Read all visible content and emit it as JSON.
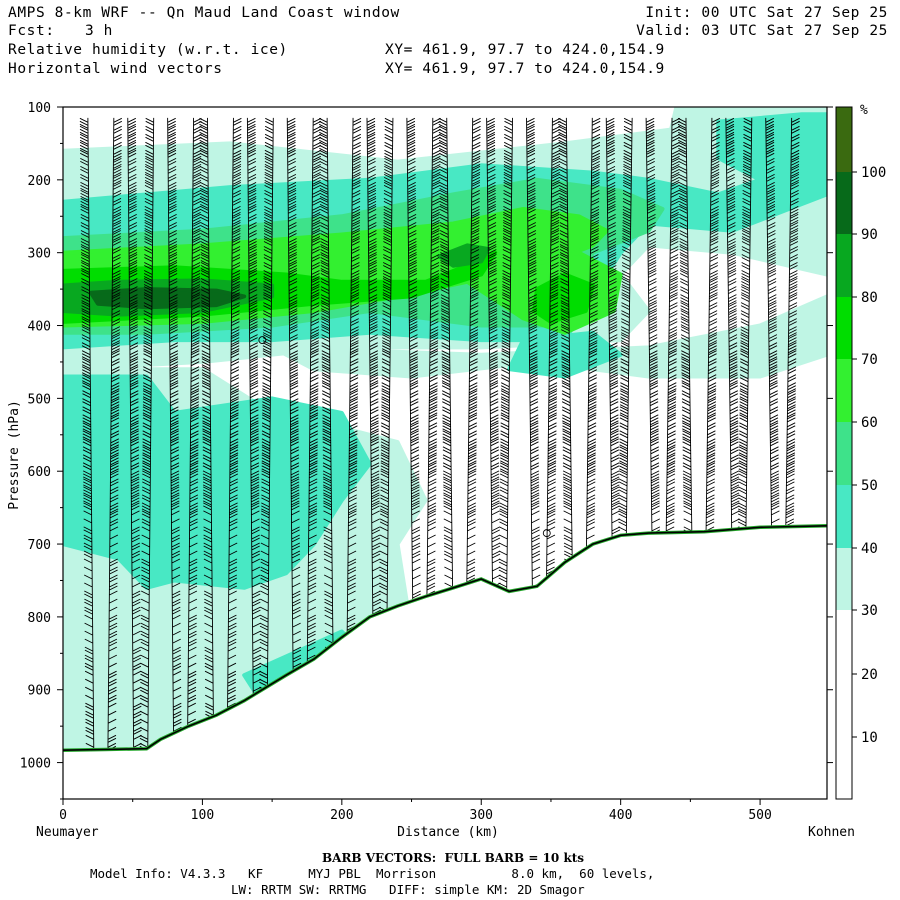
{
  "header": {
    "title": "AMPS 8-km WRF -- Qn Maud Land Coast window",
    "forecast_label": "Fcst:",
    "forecast_value": "3 h",
    "init": "Init: 00 UTC Sat 27 Sep 25",
    "valid": "Valid: 03 UTC Sat 27 Sep 25",
    "field1": "Relative humidity (w.r.t. ice)",
    "field2": "Horizontal wind vectors",
    "xy1": "XY= 461.9, 97.7 to 424.0,154.9",
    "xy2": "XY= 461.9, 97.7 to 424.0,154.9"
  },
  "footer": {
    "barb_note": "BARB VECTORS:  FULL BARB = 10 kts",
    "model_line1": "Model Info: V4.3.3   KF      MYJ PBL  Morrison          8.0 km,  60 levels,",
    "model_line2": "LW: RRTM SW: RRTMG   DIFF: simple KM: 2D Smagor"
  },
  "colors": {
    "rh_30_40": "#bff5e4",
    "rh_40_50": "#48e8c4",
    "rh_50_60": "#3ee28a",
    "rh_60_70": "#33f030",
    "rh_70_80": "#00dd00",
    "rh_80_90": "#08a820",
    "rh_90_100": "#076a1a",
    "rh_100_plus": "#3a6a10",
    "terrain_line": "#000000",
    "terrain_edge": "#25a82c"
  },
  "chart_data": {
    "type": "cross-section (filled contour + wind barbs)",
    "xlabel": "Distance (km)",
    "ylabel": "Pressure (hPa)",
    "x_start_label": "Neumayer",
    "x_end_label": "Kohnen",
    "xlim": [
      0,
      548
    ],
    "ylim": [
      100,
      1050
    ],
    "y_inverted": true,
    "x_ticks": [
      0,
      100,
      200,
      300,
      400,
      500
    ],
    "y_ticks": [
      100,
      200,
      300,
      400,
      500,
      600,
      700,
      800,
      900,
      1000
    ],
    "colorbar": {
      "unit": "%",
      "levels": [
        10,
        20,
        30,
        40,
        50,
        60,
        70,
        80,
        90,
        100
      ],
      "bands": [
        {
          "range": "0-30",
          "color": "#ffffff"
        },
        {
          "range": "30-40",
          "color": "#bff5e4"
        },
        {
          "range": "40-50",
          "color": "#48e8c4"
        },
        {
          "range": "50-60",
          "color": "#3ee28a"
        },
        {
          "range": "60-70",
          "color": "#33f030"
        },
        {
          "range": "70-80",
          "color": "#00dd00"
        },
        {
          "range": "80-90",
          "color": "#08a820"
        },
        {
          "range": "90-100",
          "color": "#076a1a"
        },
        {
          "range": ">100",
          "color": "#3a6a10"
        }
      ]
    },
    "terrain_surface_hpa": {
      "x_km": [
        0,
        30,
        60,
        70,
        90,
        110,
        130,
        160,
        180,
        200,
        220,
        240,
        260,
        280,
        300,
        320,
        340,
        360,
        380,
        400,
        420,
        460,
        500,
        548
      ],
      "p_hpa": [
        983,
        982,
        981,
        968,
        950,
        935,
        915,
        880,
        858,
        828,
        800,
        785,
        772,
        760,
        748,
        765,
        758,
        725,
        700,
        688,
        685,
        683,
        677,
        675
      ]
    },
    "rh_features": [
      {
        "desc": "saturated layer 90-100% near 350-380 hPa",
        "x_km": [
          0,
          160
        ],
        "p_hpa": [
          340,
          410
        ],
        "rh_max_pct": 95
      },
      {
        "desc": "moist band >70% sloping from west to 300 hPa",
        "x_km": [
          0,
          420
        ],
        "p_hpa": [
          220,
          440
        ],
        "rh_max_pct": 85
      },
      {
        "desc": "moist core 80-90% near 300 hPa",
        "x_km": [
          270,
          310
        ],
        "p_hpa": [
          290,
          320
        ],
        "rh_max_pct": 85
      },
      {
        "desc": "moist core 70-80% near 380 hPa",
        "x_km": [
          330,
          380
        ],
        "p_hpa": [
          340,
          420
        ],
        "rh_max_pct": 78
      },
      {
        "desc": "lower tropospheric 40-50% layer",
        "x_km": [
          0,
          200
        ],
        "p_hpa": [
          550,
          850
        ],
        "rh_max_pct": 50
      },
      {
        "desc": "dry region <30% over plateau",
        "x_km": [
          150,
          548
        ],
        "p_hpa": [
          420,
          700
        ],
        "rh_max_pct": 30
      }
    ],
    "wind_barbs": "sampled every ~14 km along section and every ~10 hPa vertically; mostly 10-30 kt westerly to north-westerly"
  }
}
